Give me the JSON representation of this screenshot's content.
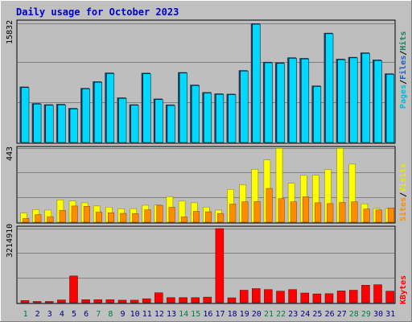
{
  "title": "Daily usage for October 2023",
  "colors": {
    "background_outer": "#c0c0c0",
    "plot_background": "#bebebe",
    "title": "#0000cc",
    "pages": "#00d8ff",
    "hits": "#1a3d5c",
    "sites": "#ff8c00",
    "visits": "#ffff00",
    "kbytes": "#ff0000",
    "weekday_label": "#000080",
    "weekend_label": "#008040"
  },
  "chart_data": [
    {
      "type": "bar",
      "panel": "hits",
      "ylabel_max": "15832",
      "ylim": [
        0,
        15832
      ],
      "legend": [
        "Pages",
        "/",
        "Files",
        "/",
        "Hits"
      ],
      "categories": [
        "1",
        "2",
        "3",
        "4",
        "5",
        "6",
        "7",
        "8",
        "9",
        "10",
        "11",
        "12",
        "13",
        "14",
        "15",
        "16",
        "17",
        "18",
        "19",
        "20",
        "21",
        "22",
        "23",
        "24",
        "25",
        "26",
        "27",
        "28",
        "29",
        "30",
        "31"
      ],
      "series": [
        {
          "name": "Hits",
          "values": [
            7420,
            5220,
            5060,
            5120,
            4580,
            7240,
            8120,
            9280,
            5980,
            5060,
            9250,
            5830,
            5040,
            9340,
            7680,
            6690,
            6520,
            6470,
            9610,
            15832,
            10710,
            10630,
            11310,
            11220,
            7560,
            14570,
            11130,
            11360,
            11960,
            11010,
            9180
          ]
        },
        {
          "name": "Files",
          "values": [
            7300,
            5100,
            4940,
            5000,
            4460,
            7120,
            8000,
            9160,
            5860,
            4940,
            9130,
            5710,
            4920,
            9220,
            7560,
            6570,
            6400,
            6350,
            9490,
            15710,
            10590,
            10510,
            11190,
            11100,
            7440,
            14450,
            11010,
            11240,
            11840,
            10890,
            9060
          ]
        }
      ]
    },
    {
      "type": "bar",
      "panel": "sites",
      "ylabel_max": "443",
      "ylim": [
        0,
        443
      ],
      "legend": [
        "Sites",
        "/",
        "Visits"
      ],
      "categories": [
        "1",
        "2",
        "3",
        "4",
        "5",
        "6",
        "7",
        "8",
        "9",
        "10",
        "11",
        "12",
        "13",
        "14",
        "15",
        "16",
        "17",
        "18",
        "19",
        "20",
        "21",
        "22",
        "23",
        "24",
        "25",
        "26",
        "27",
        "28",
        "29",
        "30",
        "31"
      ],
      "series": [
        {
          "name": "Visits",
          "values": [
            55,
            75,
            72,
            133,
            127,
            116,
            97,
            90,
            80,
            81,
            101,
            102,
            152,
            126,
            116,
            90,
            72,
            196,
            224,
            317,
            372,
            441,
            233,
            280,
            281,
            315,
            441,
            347,
            110,
            82,
            82
          ]
        },
        {
          "name": "Sites",
          "values": [
            22,
            45,
            33,
            71,
            97,
            95,
            60,
            56,
            53,
            52,
            74,
            101,
            89,
            32,
            64,
            62,
            52,
            109,
            122,
            123,
            202,
            141,
            122,
            152,
            116,
            111,
            118,
            122,
            79,
            73,
            85
          ]
        }
      ]
    },
    {
      "type": "bar",
      "panel": "kbytes",
      "ylabel_max": "3214910",
      "ylim": [
        0,
        3214910
      ],
      "legend": [
        "KBytes"
      ],
      "categories": [
        "1",
        "2",
        "3",
        "4",
        "5",
        "6",
        "7",
        "8",
        "9",
        "10",
        "11",
        "12",
        "13",
        "14",
        "15",
        "16",
        "17",
        "18",
        "19",
        "20",
        "21",
        "22",
        "23",
        "24",
        "25",
        "26",
        "27",
        "28",
        "29",
        "30",
        "31"
      ],
      "series": [
        {
          "name": "KBytes",
          "values": [
            90000,
            40000,
            40000,
            120000,
            1160000,
            130000,
            130000,
            130000,
            110000,
            110000,
            170000,
            430000,
            220000,
            220000,
            220000,
            240000,
            3214910,
            210000,
            540000,
            610000,
            570000,
            500000,
            570000,
            420000,
            380000,
            390000,
            510000,
            540000,
            760000,
            780000,
            500000
          ]
        }
      ]
    }
  ],
  "x_labels": [
    {
      "label": "1",
      "weekend": true
    },
    {
      "label": "2",
      "weekend": false
    },
    {
      "label": "3",
      "weekend": false
    },
    {
      "label": "4",
      "weekend": false
    },
    {
      "label": "5",
      "weekend": false
    },
    {
      "label": "6",
      "weekend": false
    },
    {
      "label": "7",
      "weekend": true
    },
    {
      "label": "8",
      "weekend": true
    },
    {
      "label": "9",
      "weekend": false
    },
    {
      "label": "10",
      "weekend": false
    },
    {
      "label": "11",
      "weekend": false
    },
    {
      "label": "12",
      "weekend": false
    },
    {
      "label": "13",
      "weekend": false
    },
    {
      "label": "14",
      "weekend": true
    },
    {
      "label": "15",
      "weekend": true
    },
    {
      "label": "16",
      "weekend": false
    },
    {
      "label": "17",
      "weekend": false
    },
    {
      "label": "18",
      "weekend": false
    },
    {
      "label": "19",
      "weekend": false
    },
    {
      "label": "20",
      "weekend": false
    },
    {
      "label": "21",
      "weekend": true
    },
    {
      "label": "22",
      "weekend": true
    },
    {
      "label": "23",
      "weekend": false
    },
    {
      "label": "24",
      "weekend": false
    },
    {
      "label": "25",
      "weekend": false
    },
    {
      "label": "26",
      "weekend": false
    },
    {
      "label": "27",
      "weekend": false
    },
    {
      "label": "28",
      "weekend": true
    },
    {
      "label": "29",
      "weekend": true
    },
    {
      "label": "30",
      "weekend": false
    },
    {
      "label": "31",
      "weekend": false
    }
  ]
}
